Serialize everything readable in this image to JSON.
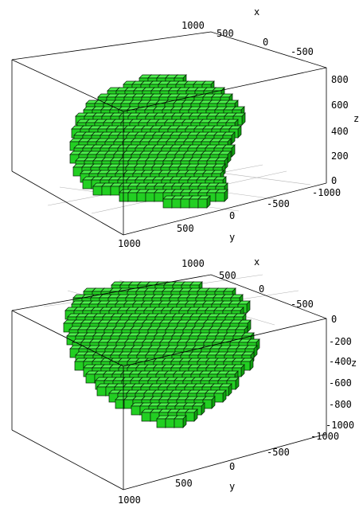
{
  "chart_data": [
    {
      "type": "3d-voxel",
      "color": "#33e633",
      "xlabel": "x",
      "ylabel": "y",
      "zlabel": "z",
      "x_ticks": [
        "1000",
        "500",
        "0",
        "-500"
      ],
      "y_ticks": [
        "1000",
        "500",
        "0",
        "-500",
        "-1000"
      ],
      "z_ticks": [
        "800",
        "600",
        "400",
        "200",
        "0"
      ],
      "zlim": [
        0,
        900
      ],
      "shape": "dome"
    },
    {
      "type": "3d-voxel",
      "color": "#33e633",
      "xlabel": "x",
      "ylabel": "y",
      "zlabel": "z",
      "x_ticks": [
        "1000",
        "500",
        "0",
        "-500"
      ],
      "y_ticks": [
        "1000",
        "500",
        "0",
        "-500",
        "-1000"
      ],
      "z_ticks": [
        "0",
        "-200",
        "-400",
        "-600",
        "-800",
        "-1000"
      ],
      "zlim": [
        -1000,
        0
      ],
      "shape": "bowl"
    }
  ]
}
